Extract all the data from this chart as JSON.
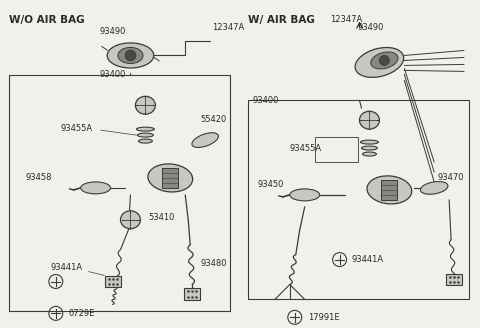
{
  "bg_color": "#f0f0ec",
  "line_color": "#3a3a3a",
  "text_color": "#2a2a2a",
  "light_gray": "#c8c8c0",
  "mid_gray": "#888880",
  "dark_gray": "#4a4a44",
  "label_fs": 6,
  "title_fs": 7.5,
  "left_title": "W/O AIR BAG",
  "right_title": "W/ AIR BAG",
  "ref_left": "12347A",
  "ref_right": "12347A"
}
